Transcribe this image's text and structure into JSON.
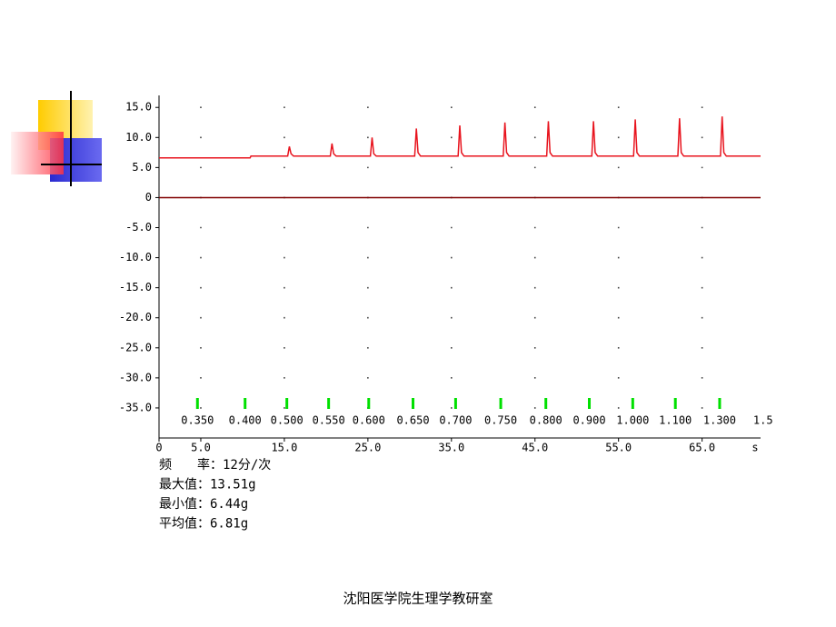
{
  "chart_data": {
    "type": "line",
    "xlim": [
      0,
      72
    ],
    "xticks": [
      0,
      {
        "value": 5,
        "label": "5.0"
      },
      {
        "value": 15,
        "label": "15.0"
      },
      {
        "value": 25,
        "label": "25.0"
      },
      {
        "value": 35,
        "label": "35.0"
      },
      {
        "value": 45,
        "label": "45.0"
      },
      {
        "value": 55,
        "label": "55.0"
      },
      {
        "value": 65,
        "label": "65.0"
      }
    ],
    "x_label": "s",
    "ylim": [
      -40,
      17
    ],
    "yticks": [
      {
        "value": 15,
        "label": "15.0"
      },
      {
        "value": 10,
        "label": "10.0"
      },
      {
        "value": 5,
        "label": "5.0"
      },
      0,
      {
        "value": -5,
        "label": "-5.0"
      },
      {
        "value": -10,
        "label": "-10.0"
      },
      {
        "value": -15,
        "label": "-15.0"
      },
      {
        "value": -20,
        "label": "-20.0"
      },
      {
        "value": -25,
        "label": "-25.0"
      },
      {
        "value": -30,
        "label": "-30.0"
      },
      {
        "value": -35,
        "label": "-35.0"
      }
    ],
    "grid": true,
    "series": [
      {
        "color": "#e8141e",
        "x": [
          0,
          10.9,
          11.0,
          15.4,
          15.6,
          15.8,
          16.1,
          20.5,
          20.7,
          20.9,
          21.2,
          25.3,
          25.5,
          25.7,
          26.0,
          30.6,
          30.8,
          31.0,
          31.3,
          35.8,
          36.0,
          36.2,
          36.5,
          41.2,
          41.4,
          41.6,
          41.9,
          46.4,
          46.6,
          46.8,
          47.1,
          51.8,
          52.0,
          52.2,
          52.5,
          56.8,
          57.0,
          57.2,
          57.5,
          62.1,
          62.3,
          62.5,
          62.8,
          67.2,
          67.4,
          67.6,
          67.9,
          72
        ],
        "values": [
          6.6,
          6.6,
          6.9,
          6.9,
          8.5,
          7.3,
          6.9,
          6.9,
          9.0,
          7.3,
          6.9,
          6.9,
          10.0,
          7.3,
          6.9,
          6.9,
          11.5,
          7.5,
          6.9,
          6.9,
          12.0,
          7.5,
          6.9,
          6.9,
          12.5,
          7.5,
          6.9,
          6.9,
          12.7,
          7.5,
          6.9,
          6.9,
          12.7,
          7.5,
          6.9,
          6.9,
          13.0,
          7.5,
          6.9,
          6.9,
          13.2,
          7.5,
          6.9,
          6.9,
          13.5,
          7.5,
          6.9,
          6.9
        ]
      },
      {
        "color": "#800000",
        "x": [
          0,
          72
        ],
        "values": [
          0,
          0
        ]
      }
    ],
    "markers": {
      "color": "#00e000",
      "x": [
        4.6,
        10.3,
        15.3,
        20.3,
        25.1,
        30.4,
        35.5,
        40.9,
        46.3,
        51.5,
        56.7,
        61.8,
        67.1,
        72.3
      ],
      "labels": [
        "0.350",
        "0.400",
        "0.500",
        "0.550",
        "0.600",
        "0.650",
        "0.700",
        "0.750",
        "0.800",
        "0.900",
        "1.000",
        "1.100",
        "1.300",
        "1.5"
      ]
    },
    "stats": [
      "频　　率：12分/次",
      "最大值：13.51g",
      "最小值：6.44g",
      "平均值：6.81g"
    ],
    "footer": "沈阳医学院生理学教研室"
  }
}
